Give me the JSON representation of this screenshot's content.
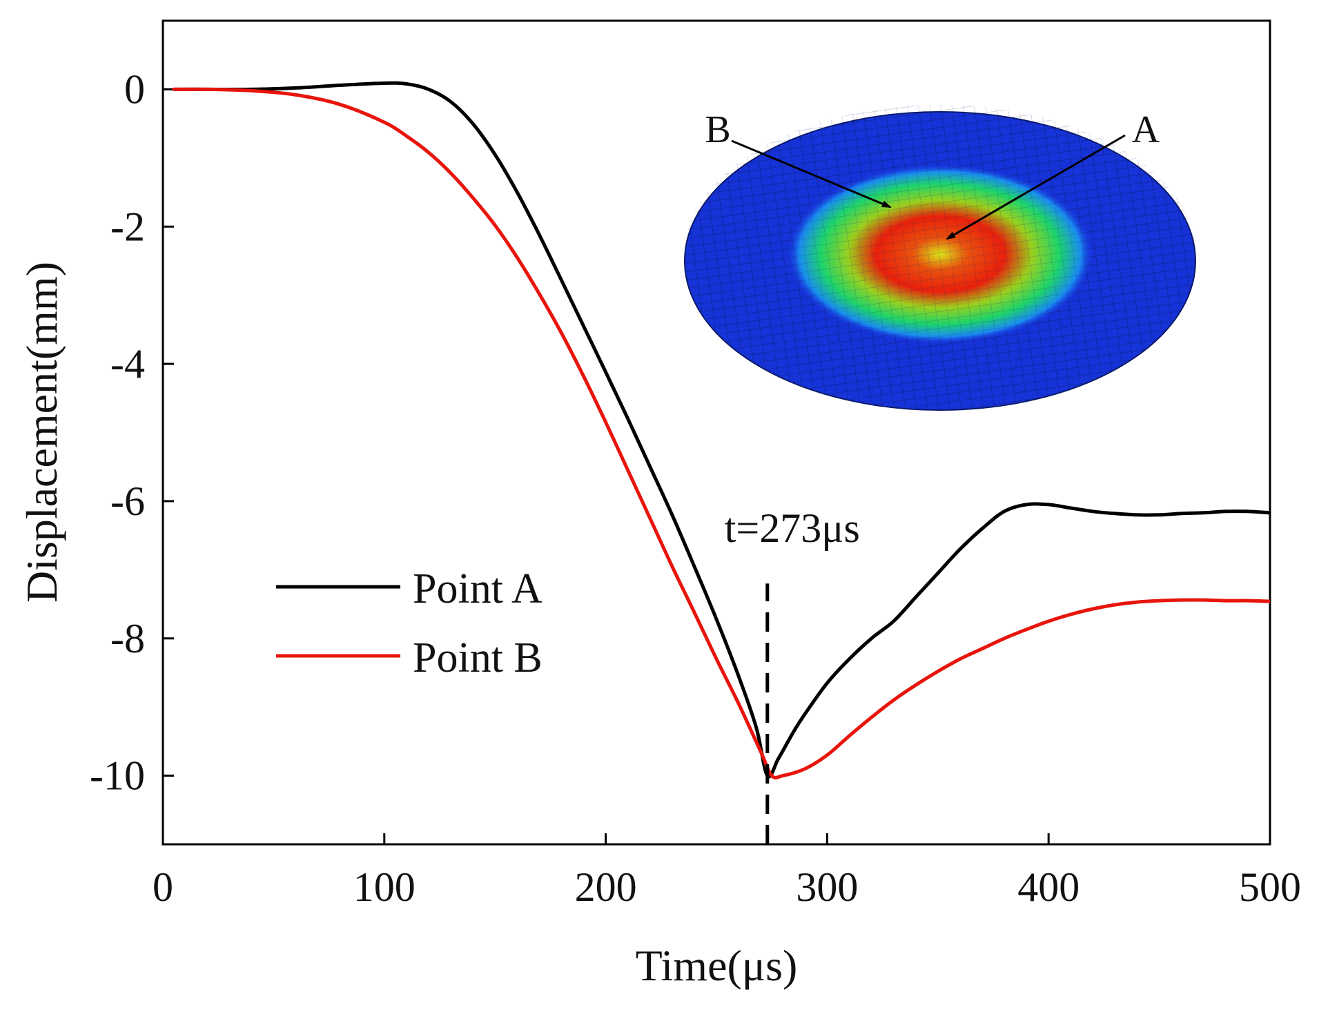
{
  "chart_data": {
    "type": "line",
    "title": "",
    "xlabel": "Time(μs)",
    "ylabel": "Displacement(mm)",
    "xlim": [
      0,
      500
    ],
    "ylim": [
      -11,
      1
    ],
    "xticks": [
      0,
      100,
      200,
      300,
      400,
      500
    ],
    "yticks": [
      0,
      -2,
      -4,
      -6,
      -8,
      -10
    ],
    "xtick_labels": [
      "0",
      "100",
      "200",
      "300",
      "400",
      "500"
    ],
    "ytick_labels": [
      "0",
      "-2",
      "-4",
      "-6",
      "-8",
      "-10"
    ],
    "grid": false,
    "legend_position": "lower-left",
    "series": [
      {
        "name": "Point A",
        "label": "Point A",
        "color": "#000000",
        "x": [
          5,
          20,
          40,
          60,
          80,
          100,
          110,
          120,
          130,
          140,
          150,
          160,
          170,
          180,
          190,
          200,
          210,
          220,
          230,
          240,
          250,
          260,
          268,
          273,
          278,
          285,
          290,
          300,
          310,
          320,
          330,
          340,
          350,
          360,
          370,
          380,
          390,
          400,
          410,
          420,
          430,
          440,
          450,
          460,
          470,
          480,
          490,
          500
        ],
        "y": [
          0,
          0,
          0,
          0.02,
          0.06,
          0.09,
          0.08,
          0.0,
          -0.18,
          -0.5,
          -0.95,
          -1.5,
          -2.12,
          -2.78,
          -3.45,
          -4.12,
          -4.8,
          -5.5,
          -6.2,
          -6.95,
          -7.72,
          -8.55,
          -9.3,
          -10.0,
          -9.75,
          -9.35,
          -9.1,
          -8.65,
          -8.3,
          -8.0,
          -7.75,
          -7.4,
          -7.05,
          -6.7,
          -6.4,
          -6.15,
          -6.05,
          -6.05,
          -6.1,
          -6.15,
          -6.18,
          -6.2,
          -6.2,
          -6.18,
          -6.17,
          -6.15,
          -6.15,
          -6.17
        ]
      },
      {
        "name": "Point B",
        "label": "Point B",
        "color": "#e8150c",
        "x": [
          5,
          20,
          40,
          60,
          80,
          100,
          110,
          120,
          130,
          140,
          150,
          160,
          170,
          180,
          190,
          200,
          210,
          220,
          230,
          240,
          250,
          260,
          270,
          275,
          280,
          290,
          300,
          310,
          320,
          330,
          340,
          350,
          360,
          370,
          380,
          390,
          400,
          410,
          420,
          430,
          440,
          450,
          460,
          470,
          480,
          490,
          500
        ],
        "y": [
          0,
          0,
          -0.02,
          -0.08,
          -0.22,
          -0.48,
          -0.68,
          -0.92,
          -1.22,
          -1.58,
          -1.98,
          -2.45,
          -2.98,
          -3.55,
          -4.18,
          -4.85,
          -5.55,
          -6.25,
          -6.95,
          -7.62,
          -8.3,
          -8.95,
          -9.65,
          -10.0,
          -10.0,
          -9.9,
          -9.7,
          -9.42,
          -9.15,
          -8.9,
          -8.68,
          -8.48,
          -8.3,
          -8.15,
          -8.0,
          -7.87,
          -7.75,
          -7.65,
          -7.57,
          -7.51,
          -7.47,
          -7.45,
          -7.44,
          -7.44,
          -7.45,
          -7.45,
          -7.46
        ]
      }
    ],
    "annotations": [
      {
        "type": "vline",
        "x": 273,
        "y_from": -11,
        "y_to": -7.2,
        "style": "dashed",
        "text": "t=273μs"
      }
    ],
    "inset": {
      "description_labels": [
        "B",
        "A"
      ]
    }
  }
}
